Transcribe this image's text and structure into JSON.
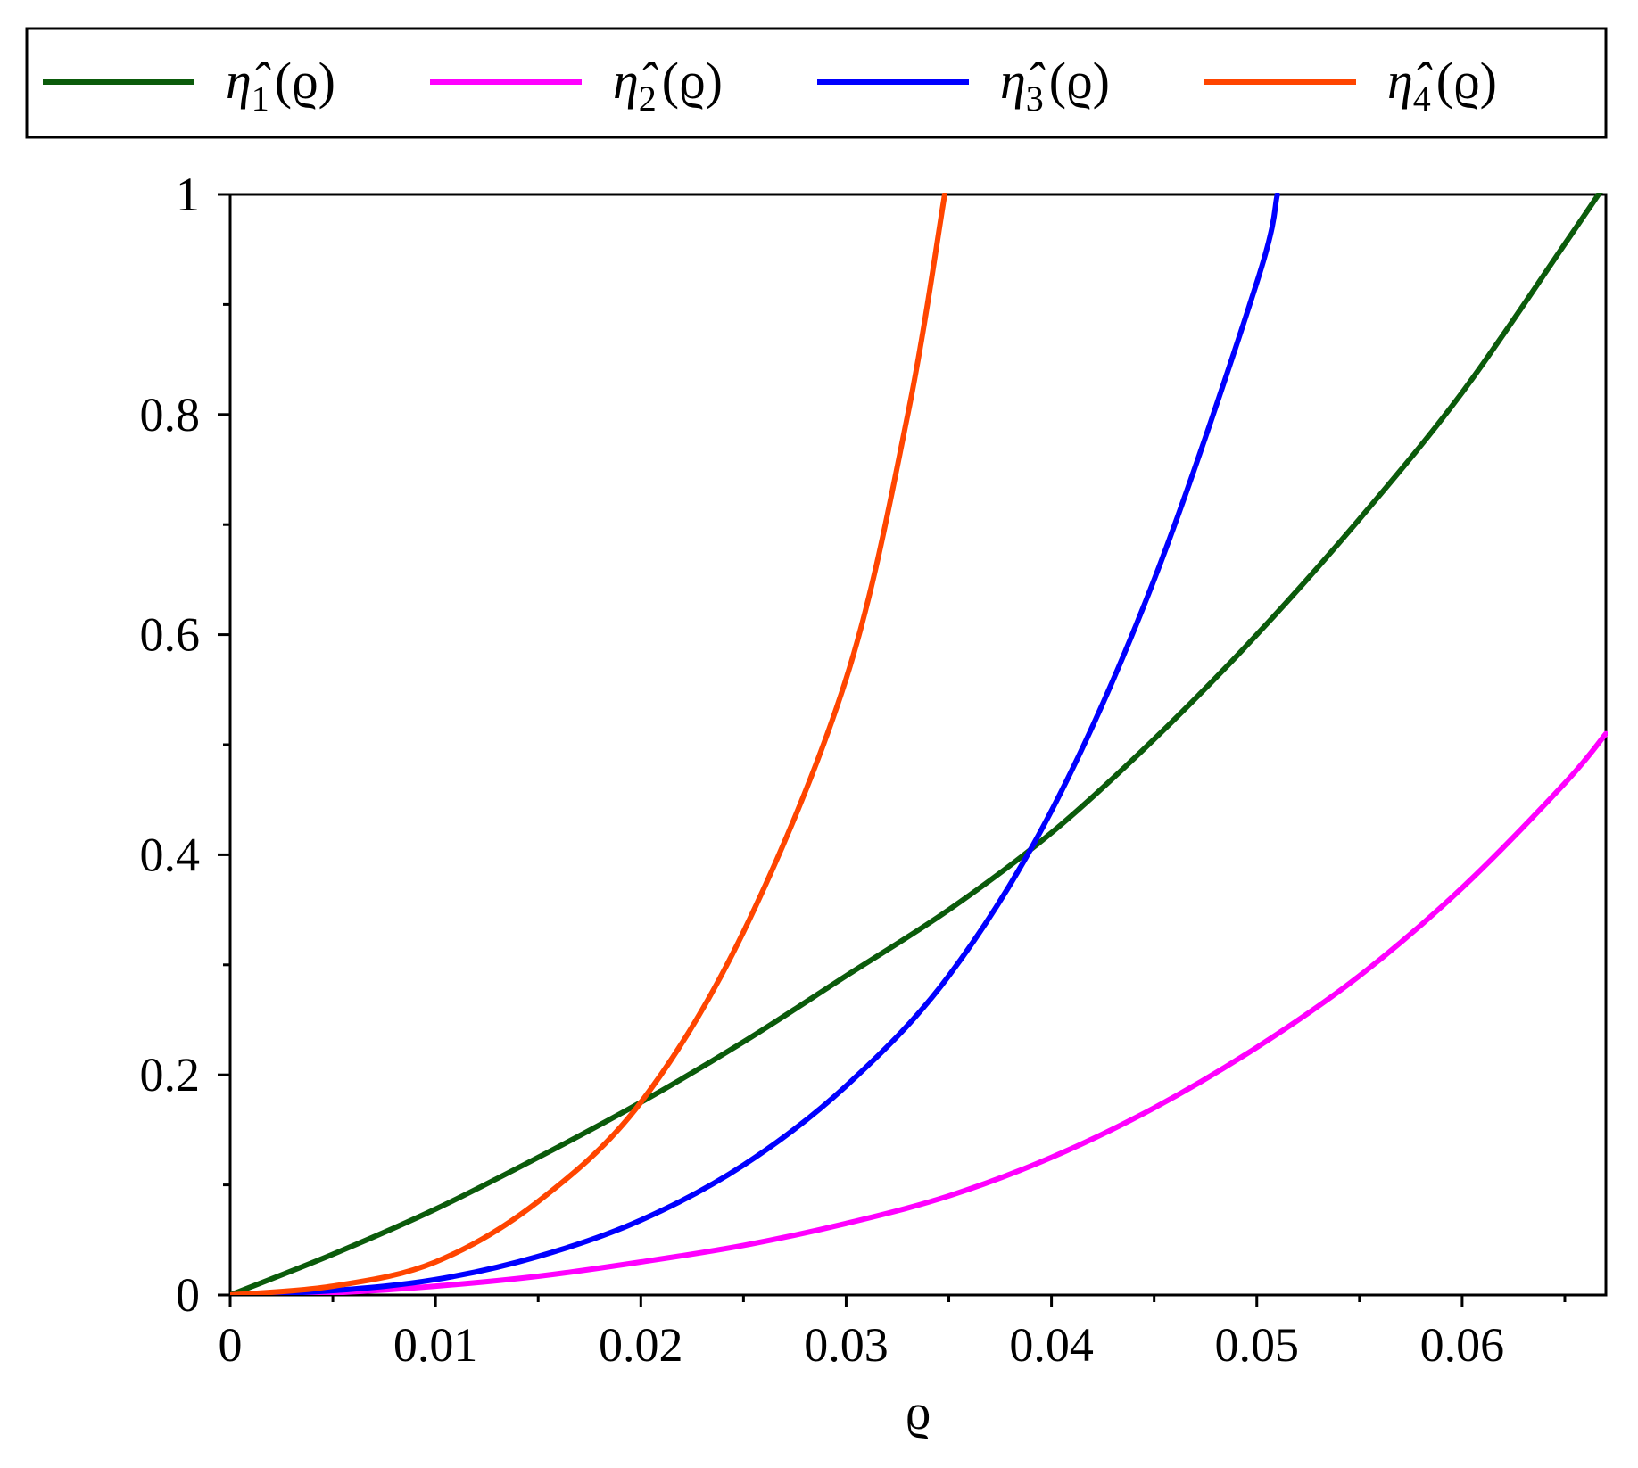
{
  "chart_data": {
    "type": "line",
    "title": "",
    "xlabel": "ϱ",
    "ylabel": "",
    "xlim": [
      0,
      0.067
    ],
    "ylim": [
      0,
      1
    ],
    "x_ticks": [
      {
        "value": 0,
        "label": "0"
      },
      {
        "value": 0.01,
        "label": "0.01"
      },
      {
        "value": 0.02,
        "label": "0.02"
      },
      {
        "value": 0.03,
        "label": "0.03"
      },
      {
        "value": 0.04,
        "label": "0.04"
      },
      {
        "value": 0.05,
        "label": "0.05"
      },
      {
        "value": 0.06,
        "label": "0.06"
      }
    ],
    "y_ticks": [
      {
        "value": 0,
        "label": "0"
      },
      {
        "value": 0.2,
        "label": "0.2"
      },
      {
        "value": 0.4,
        "label": "0.4"
      },
      {
        "value": 0.6,
        "label": "0.6"
      },
      {
        "value": 0.8,
        "label": "0.8"
      },
      {
        "value": 1,
        "label": "1"
      }
    ],
    "x_minor_step": 0.005,
    "y_minor_step": 0.1,
    "grid": false,
    "legend_position": "top",
    "series": [
      {
        "name": "η̂1(ϱ)",
        "color": "#0b5b0b",
        "x": [
          0,
          0.005,
          0.01,
          0.015,
          0.02,
          0.025,
          0.03,
          0.035,
          0.04,
          0.045,
          0.05,
          0.055,
          0.06,
          0.065,
          0.067
        ],
        "y": [
          0,
          0.037,
          0.078,
          0.125,
          0.175,
          0.23,
          0.29,
          0.35,
          0.42,
          0.505,
          0.6,
          0.705,
          0.82,
          0.955,
          1.01
        ]
      },
      {
        "name": "η̂2(ϱ)",
        "color": "#ff00ff",
        "x": [
          0,
          0.005,
          0.01,
          0.015,
          0.02,
          0.025,
          0.03,
          0.035,
          0.04,
          0.045,
          0.05,
          0.055,
          0.06,
          0.065,
          0.067
        ],
        "y": [
          0,
          0.002,
          0.008,
          0.017,
          0.03,
          0.045,
          0.065,
          0.09,
          0.125,
          0.17,
          0.225,
          0.29,
          0.37,
          0.465,
          0.51
        ]
      },
      {
        "name": "η̂3(ϱ)",
        "color": "#0000ff",
        "x": [
          0,
          0.005,
          0.01,
          0.015,
          0.02,
          0.025,
          0.03,
          0.035,
          0.04,
          0.045,
          0.05,
          0.051
        ],
        "y": [
          0,
          0.004,
          0.014,
          0.035,
          0.068,
          0.118,
          0.19,
          0.29,
          0.44,
          0.65,
          0.92,
          1.0
        ]
      },
      {
        "name": "η̂4(ϱ)",
        "color": "#ff4500",
        "x": [
          0,
          0.005,
          0.01,
          0.015,
          0.02,
          0.025,
          0.03,
          0.033,
          0.0348
        ],
        "y": [
          0,
          0.008,
          0.03,
          0.085,
          0.175,
          0.33,
          0.56,
          0.8,
          1.0
        ]
      }
    ]
  },
  "legend": {
    "items": [
      {
        "symbol": "η̂",
        "sub": "1",
        "arg": "(ϱ)",
        "color": "#0b5b0b"
      },
      {
        "symbol": "η̂",
        "sub": "2",
        "arg": "(ϱ)",
        "color": "#ff00ff"
      },
      {
        "symbol": "η̂",
        "sub": "3",
        "arg": "(ϱ)",
        "color": "#0000ff"
      },
      {
        "symbol": "η̂",
        "sub": "4",
        "arg": "(ϱ)",
        "color": "#ff4500"
      }
    ]
  }
}
